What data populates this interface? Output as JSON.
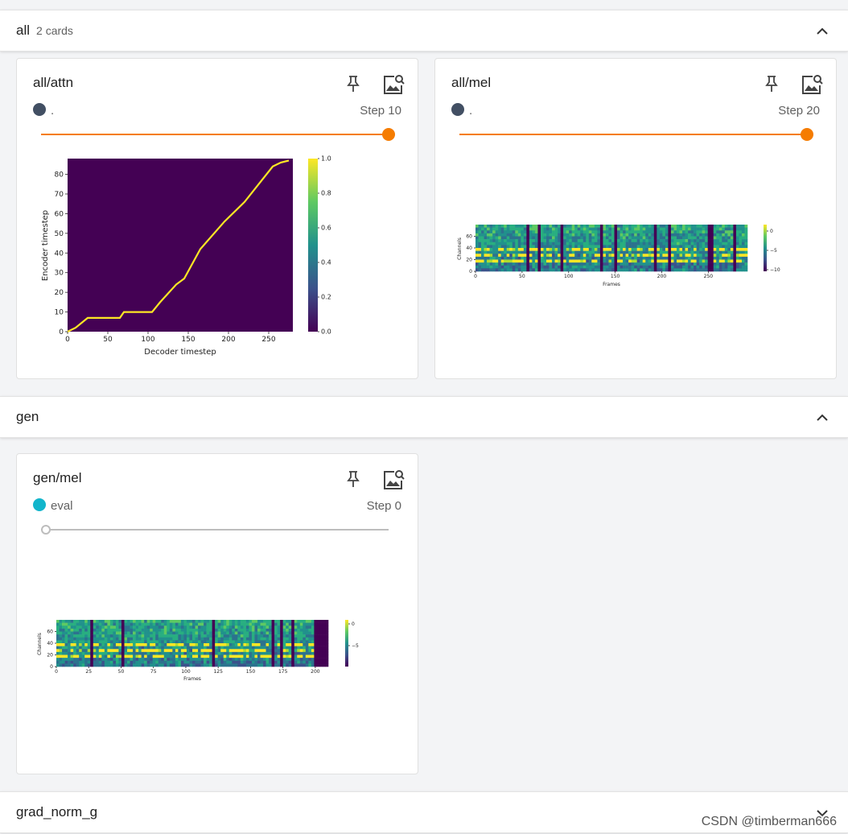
{
  "groups": [
    {
      "title": "all",
      "count": "2 cards"
    },
    {
      "title": "gen"
    },
    {
      "title": "grad_norm_g"
    }
  ],
  "cards": {
    "attn": {
      "title": "all/attn",
      "run": ".",
      "step": "Step 10",
      "run_color": "#424f63",
      "slider_fraction": 1.0
    },
    "mel": {
      "title": "all/mel",
      "run": ".",
      "step": "Step 20",
      "run_color": "#424f63",
      "slider_fraction": 1.0
    },
    "genmel": {
      "title": "gen/mel",
      "run": "eval",
      "step": "Step 0",
      "run_color": "#12b5cb",
      "slider_fraction": 0.0
    }
  },
  "icons": {
    "pin": "pin-icon",
    "image_settings": "image-settings-icon",
    "collapse": "chevron-up-icon",
    "expand": "chevron-down-icon"
  },
  "colors": {
    "accent": "#f57c00",
    "viridis_dark": "#440154",
    "viridis_yellow": "#fde725"
  },
  "chart_data": [
    {
      "type": "heatmap",
      "name": "attention",
      "xlabel": "Decoder timestep",
      "ylabel": "Encoder timestep",
      "xlim": [
        0,
        280
      ],
      "ylim": [
        0,
        88
      ],
      "xticks": [
        "0",
        "50",
        "100",
        "150",
        "200",
        "250"
      ],
      "yticks": [
        "0",
        "10",
        "20",
        "30",
        "40",
        "50",
        "60",
        "70",
        "80"
      ],
      "colorbar_ticks": [
        "0.0",
        "0.2",
        "0.4",
        "0.6",
        "0.8",
        "1.0"
      ],
      "alignment_path": {
        "x": [
          0,
          10,
          25,
          65,
          70,
          105,
          115,
          135,
          145,
          165,
          195,
          220,
          255,
          265,
          275
        ],
        "y": [
          0,
          2,
          7,
          7,
          10,
          10,
          15,
          24,
          27,
          42,
          56,
          66,
          84,
          86,
          87
        ]
      }
    },
    {
      "type": "heatmap",
      "name": "mel",
      "xlabel": "Frames",
      "ylabel": "Channels",
      "xticks": [
        "0",
        "50",
        "100",
        "150",
        "200",
        "250"
      ],
      "yticks": [
        "0",
        "20",
        "40",
        "60"
      ],
      "colorbar_ticks": [
        "0",
        "−5",
        "−10"
      ]
    },
    {
      "type": "heatmap",
      "name": "gen_mel",
      "xlabel": "Frames",
      "ylabel": "Channels",
      "xticks": [
        "0",
        "25",
        "50",
        "75",
        "100",
        "125",
        "150",
        "175",
        "200"
      ],
      "yticks": [
        "0",
        "20",
        "40",
        "60"
      ],
      "colorbar_ticks": [
        "0",
        "−5"
      ]
    }
  ],
  "watermark": "CSDN @timberman666"
}
